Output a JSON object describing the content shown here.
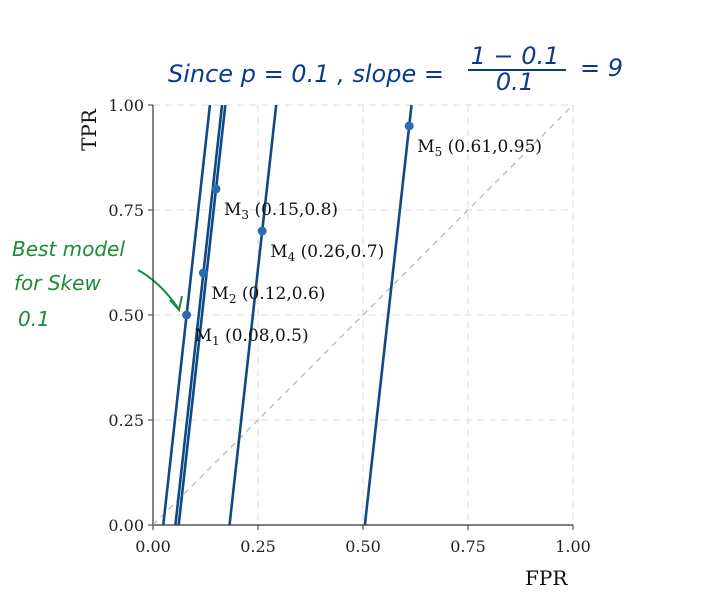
{
  "chart_data": {
    "type": "scatter",
    "title": "",
    "xlabel": "FPR",
    "ylabel": "TPR",
    "xlim": [
      0,
      1
    ],
    "ylim": [
      0,
      1
    ],
    "x_ticks": [
      "0.00",
      "0.25",
      "0.50",
      "0.75",
      "1.00"
    ],
    "y_ticks": [
      "0.00",
      "0.25",
      "0.50",
      "0.75",
      "1.00"
    ],
    "grid": true,
    "points": [
      {
        "sub": "1",
        "coords": "(0.08,0.5)",
        "x": 0.08,
        "y": 0.5
      },
      {
        "sub": "2",
        "coords": "(0.12,0.6)",
        "x": 0.12,
        "y": 0.6
      },
      {
        "sub": "3",
        "coords": "(0.15,0.8)",
        "x": 0.15,
        "y": 0.8
      },
      {
        "sub": "4",
        "coords": "(0.26,0.7)",
        "x": 0.26,
        "y": 0.7
      },
      {
        "sub": "5",
        "coords": "(0.61,0.95)",
        "x": 0.61,
        "y": 0.95
      }
    ],
    "label_prefix": "M",
    "iso_slope": 9,
    "diagonal": true,
    "point_color": "#2b6cb0",
    "line_color": "#0f4a85",
    "diagonal_color": "#bbbbbb"
  },
  "annotations": {
    "top_note_left": "Since p = 0.1 , slope =",
    "fraction_numerator": "1 − 0.1",
    "fraction_denominator": "0.1",
    "top_note_right": "= 9",
    "side_note_line1": "Best model",
    "side_note_line2": "for Skew",
    "side_note_line3": "0.1",
    "handwriting_blue": "#0b3a8c",
    "handwriting_green": "#1d8a3a"
  }
}
